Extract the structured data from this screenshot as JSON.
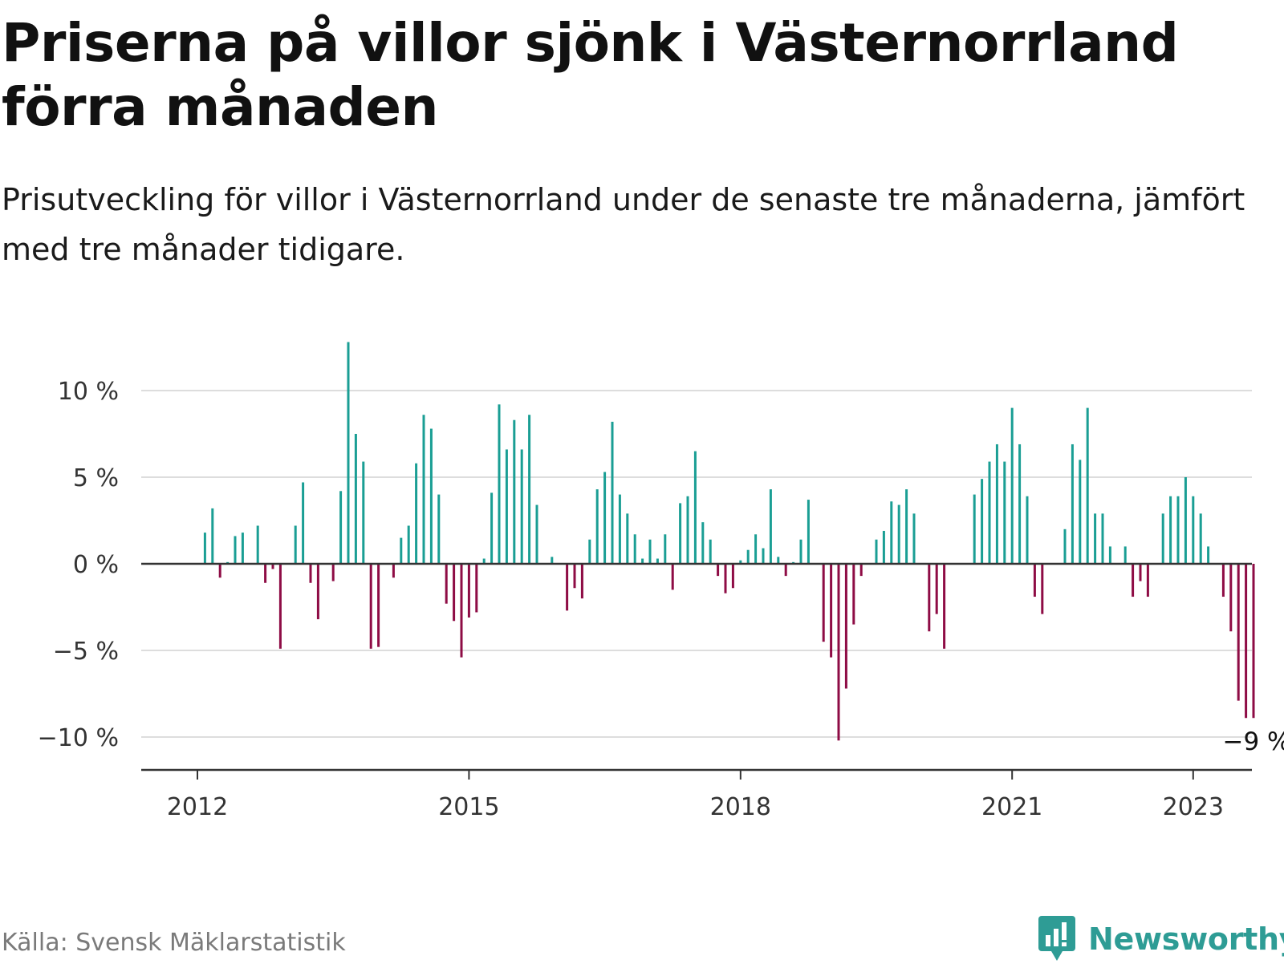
{
  "title": "Priserna på villor sjönk i Västernorrland förra månaden",
  "subtitle": "Prisutveckling för villor i Västernorrland under de senaste tre månaderna, jämfört med tre månader tidigare.",
  "source": "Källa: Svensk Mäklarstatistik",
  "logo": {
    "text": "Newsworthy",
    "icon": "newsworthy-chart-bubble-icon"
  },
  "colors": {
    "positive": "#1a9e94",
    "negative": "#8e0c45",
    "grid": "#dddddd",
    "axis": "#333333"
  },
  "chart_data": {
    "type": "bar",
    "title": "Priserna på villor sjönk i Västernorrland förra månaden",
    "subtitle": "Prisutveckling för villor i Västernorrland under de senaste tre månaderna, jämfört med tre månader tidigare.",
    "xlabel": "",
    "ylabel": "",
    "x_start": "2012-01",
    "ylim": [
      -11.5,
      13
    ],
    "yticks": [
      10,
      5,
      0,
      -5,
      -10
    ],
    "ytick_labels": [
      "10 %",
      "5 %",
      "0 %",
      "−5 %",
      "−10 %"
    ],
    "xticks": [
      "2012",
      "2015",
      "2018",
      "2021",
      "2023"
    ],
    "xtick_months": [
      0,
      36,
      72,
      108,
      132
    ],
    "grid": true,
    "legend": "none",
    "end_label": "−9 %",
    "values": [
      0,
      1.8,
      3.2,
      -0.8,
      0.1,
      1.6,
      1.8,
      0,
      2.2,
      -1.1,
      -0.3,
      -4.9,
      0,
      2.2,
      4.7,
      -1.1,
      -3.2,
      0,
      -1.0,
      4.2,
      12.8,
      7.5,
      5.9,
      -4.9,
      -4.8,
      0,
      -0.8,
      1.5,
      2.2,
      5.8,
      8.6,
      7.8,
      4.0,
      -2.3,
      -3.3,
      -5.4,
      -3.1,
      -2.8,
      0.3,
      4.1,
      9.2,
      6.6,
      8.3,
      6.6,
      8.6,
      3.4,
      0,
      0.4,
      0,
      -2.7,
      -1.4,
      -2.0,
      1.4,
      4.3,
      5.3,
      8.2,
      4.0,
      2.9,
      1.7,
      0.3,
      1.4,
      0.3,
      1.7,
      -1.5,
      3.5,
      3.9,
      6.5,
      2.4,
      1.4,
      -0.7,
      -1.7,
      -1.4,
      0.2,
      0.8,
      1.7,
      0.9,
      4.3,
      0.4,
      -0.7,
      0.1,
      1.4,
      3.7,
      0,
      -4.5,
      -5.4,
      -10.2,
      -7.2,
      -3.5,
      -0.7,
      0,
      1.4,
      1.9,
      3.6,
      3.4,
      4.3,
      2.9,
      0,
      -3.9,
      -2.9,
      -4.9,
      0,
      0,
      0,
      4.0,
      4.9,
      5.9,
      6.9,
      5.9,
      9.0,
      6.9,
      3.9,
      -1.9,
      -2.9,
      0,
      0,
      2.0,
      6.9,
      6.0,
      9.0,
      2.9,
      2.9,
      1.0,
      0,
      1.0,
      -1.9,
      -1.0,
      -1.9,
      0,
      2.9,
      3.9,
      3.9,
      5.0,
      3.9,
      2.9,
      1.0,
      0,
      -1.9,
      -3.9,
      -7.9,
      -8.9,
      -8.9
    ]
  }
}
